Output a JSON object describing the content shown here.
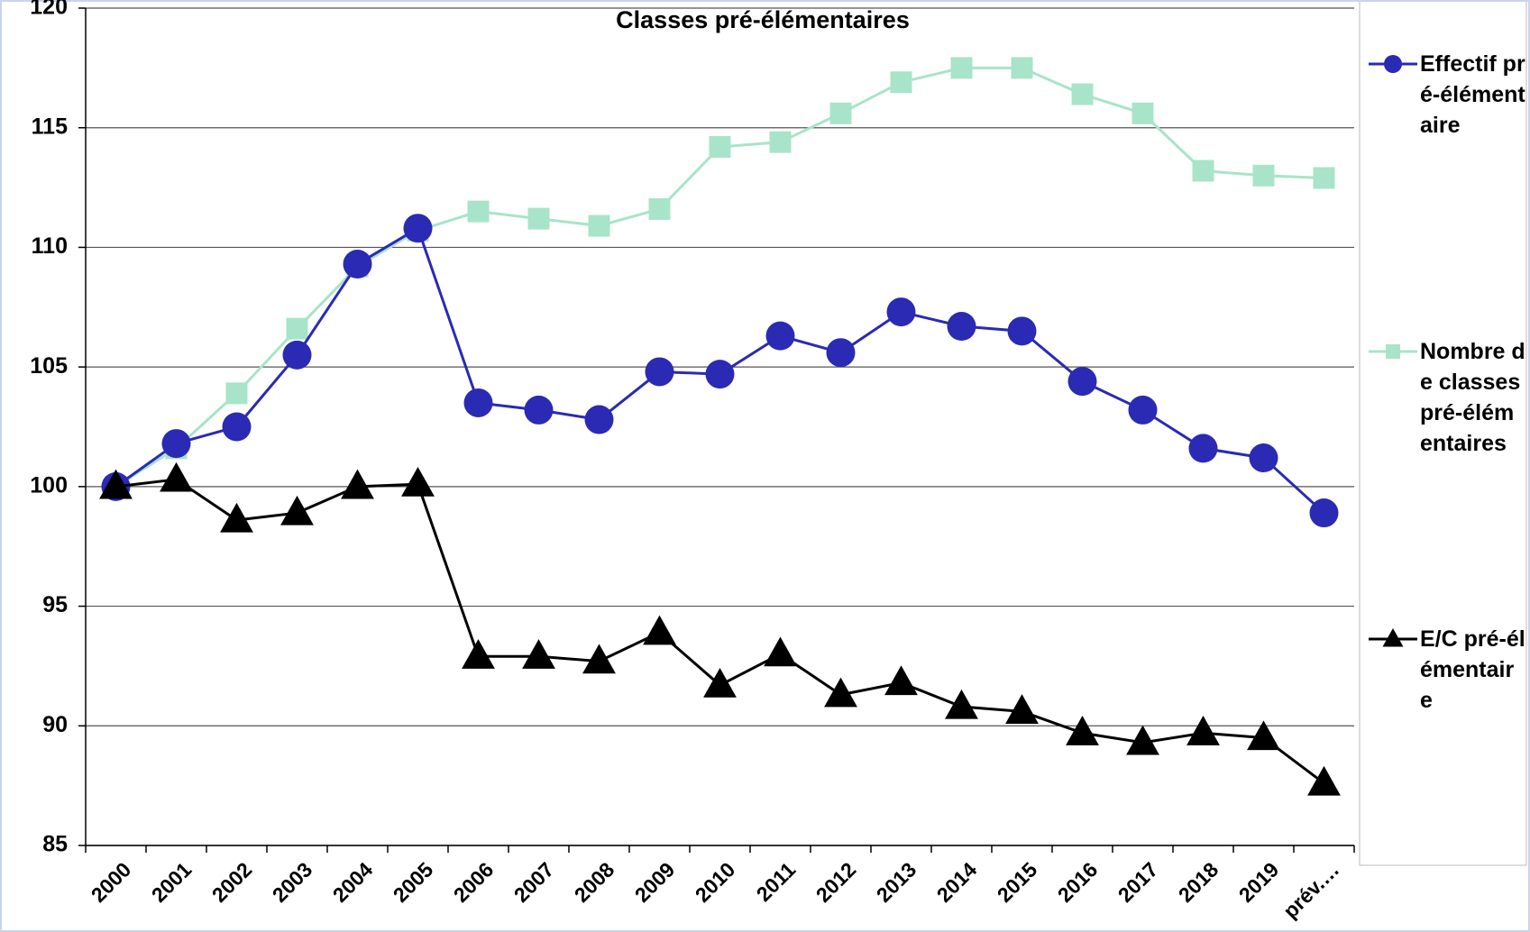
{
  "chart_data": {
    "type": "line",
    "title": "Classes pré-élémentaires",
    "categories": [
      "2000",
      "2001",
      "2002",
      "2003",
      "2004",
      "2005",
      "2006",
      "2007",
      "2008",
      "2009",
      "2010",
      "2011",
      "2012",
      "2013",
      "2014",
      "2015",
      "2016",
      "2017",
      "2018",
      "2019",
      "prév.…"
    ],
    "series": [
      {
        "name": "Effectif pré-élémentaire",
        "color": "#2a2ab4",
        "marker": "circle",
        "values": [
          100,
          101.8,
          102.5,
          105.5,
          109.3,
          110.8,
          103.5,
          103.2,
          102.8,
          104.8,
          104.7,
          106.3,
          105.6,
          107.3,
          106.7,
          106.5,
          104.4,
          103.2,
          101.6,
          101.2,
          98.9
        ]
      },
      {
        "name": "Nombre de classes pré-élémentaires",
        "color": "#a8e4c9",
        "marker": "square",
        "values": [
          100,
          101.6,
          103.9,
          106.6,
          109.2,
          110.7,
          111.5,
          111.2,
          110.9,
          111.6,
          114.2,
          114.4,
          115.6,
          116.9,
          117.5,
          117.5,
          116.4,
          115.6,
          113.2,
          113.0,
          112.9
        ]
      },
      {
        "name": "E/C pré-élémentaire",
        "color": "#000000",
        "marker": "triangle",
        "values": [
          100,
          100.3,
          98.6,
          98.9,
          100.0,
          100.1,
          92.9,
          92.9,
          92.7,
          93.9,
          91.7,
          93.0,
          91.3,
          91.8,
          90.8,
          90.6,
          89.7,
          89.3,
          89.7,
          89.5,
          87.6
        ]
      }
    ],
    "ylim": [
      85,
      120
    ],
    "yticks": [
      85,
      90,
      95,
      100,
      105,
      110,
      115,
      120
    ],
    "grid": true,
    "legend": "right"
  }
}
